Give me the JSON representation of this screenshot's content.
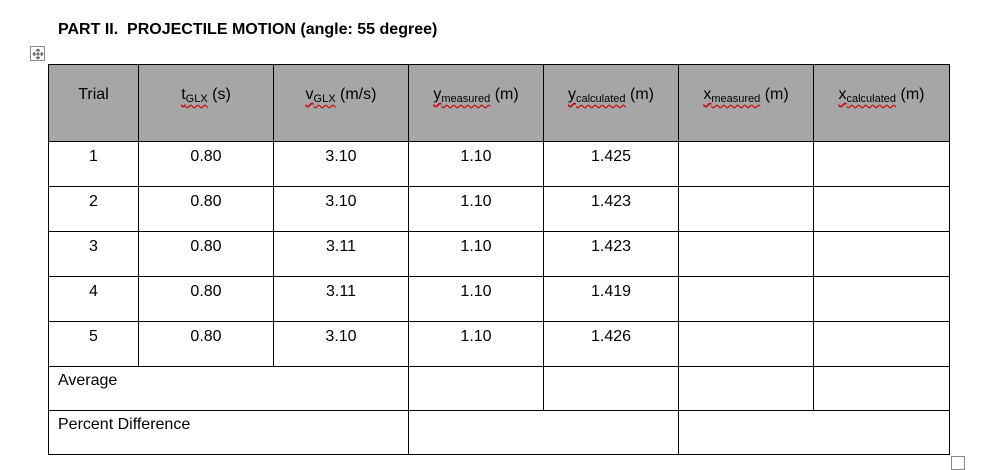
{
  "title": "PART II.  PROJECTILE MOTION (angle: 55 degree)",
  "table": {
    "header": [
      {
        "text": "Trial"
      },
      {
        "symbol": "t",
        "subscript": "GLX",
        "unit": "(s)"
      },
      {
        "symbol": "v",
        "subscript": "GLX",
        "unit": "(m/s)"
      },
      {
        "symbol": "y",
        "subscript": "measured",
        "unit": "(m)"
      },
      {
        "symbol": "y",
        "subscript": "calculated",
        "unit": "(m)"
      },
      {
        "symbol": "x",
        "subscript": "measured",
        "unit": "(m)"
      },
      {
        "symbol": "x",
        "subscript": "calculated",
        "unit": "(m)"
      }
    ],
    "rows": [
      [
        "1",
        "0.80",
        "3.10",
        "1.10",
        "1.425"
      ],
      [
        "2",
        "0.80",
        "3.10",
        "1.10",
        "1.423"
      ],
      [
        "3",
        "0.80",
        "3.11",
        "1.10",
        "1.423"
      ],
      [
        "4",
        "0.80",
        "3.11",
        "1.10",
        "1.419"
      ],
      [
        "5",
        "0.80",
        "3.10",
        "1.10",
        "1.426"
      ]
    ],
    "average_label": "Average",
    "percent_difference_label": "Percent Difference"
  }
}
